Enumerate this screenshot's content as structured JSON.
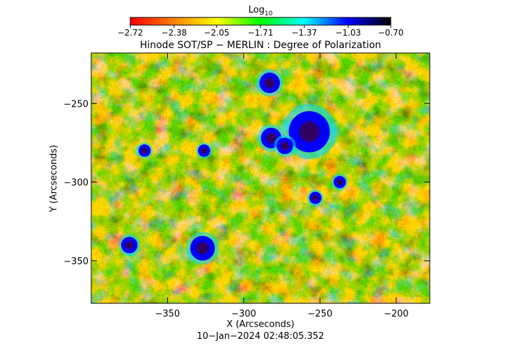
{
  "chart_data": {
    "type": "heatmap",
    "title": "Hinode SOT/SP − MERLIN : Degree of Polarization",
    "subtitle": "10−Jan−2024 02:48:05.352",
    "xlabel": "X (Arcseconds)",
    "ylabel": "Y (Arcseconds)",
    "xlim": [
      -400,
      -178
    ],
    "ylim": [
      -377,
      -218
    ],
    "x_ticks": [
      -350,
      -300,
      -250,
      -200
    ],
    "x_tick_labels": [
      "−350",
      "−300",
      "−250",
      "−200"
    ],
    "y_ticks": [
      -250,
      -300,
      -350
    ],
    "y_tick_labels": [
      "−250",
      "−300",
      "−350"
    ],
    "colorbar": {
      "label_base": "Log",
      "label_subscript": "10",
      "range": [
        -2.72,
        -0.7
      ],
      "ticks": [
        -2.72,
        -2.38,
        -2.05,
        -1.71,
        -1.37,
        -1.03,
        -0.7
      ],
      "tick_labels": [
        "−2.72",
        "−2.38",
        "−2.05",
        "−1.71",
        "−1.37",
        "−1.03",
        "−0.70"
      ],
      "colormap": [
        "#ff0000",
        "#ff8000",
        "#ffff00",
        "#00ff00",
        "#00ffff",
        "#0000ff",
        "#000000"
      ]
    },
    "features": [
      {
        "x": -257,
        "y": -268,
        "r": 10,
        "value": -0.75
      },
      {
        "x": -282,
        "y": -272,
        "r": 5,
        "value": -0.9
      },
      {
        "x": -273,
        "y": -277,
        "r": 4,
        "value": -0.95
      },
      {
        "x": -283,
        "y": -237,
        "r": 5,
        "value": -1.0
      },
      {
        "x": -327,
        "y": -342,
        "r": 6,
        "value": -0.95
      },
      {
        "x": -375,
        "y": -340,
        "r": 4,
        "value": -1.0
      },
      {
        "x": -365,
        "y": -280,
        "r": 3,
        "value": -1.05
      },
      {
        "x": -326,
        "y": -280,
        "r": 3,
        "value": -1.05
      },
      {
        "x": -237,
        "y": -300,
        "r": 3,
        "value": -1.05
      },
      {
        "x": -253,
        "y": -310,
        "r": 3,
        "value": -1.05
      }
    ],
    "grid": false
  }
}
